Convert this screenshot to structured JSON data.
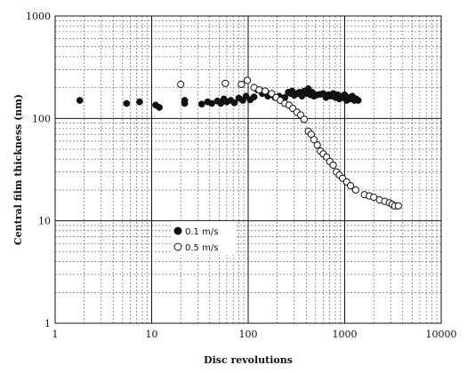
{
  "chart_data": {
    "type": "scatter",
    "xlabel": "Disc revolutions",
    "ylabel": "Central film thickness (nm)",
    "x_scale": "log",
    "y_scale": "log",
    "xlim": [
      1,
      10000
    ],
    "ylim": [
      1,
      1000
    ],
    "x_ticks": [
      "1",
      "10",
      "100",
      "1000",
      "10000"
    ],
    "y_ticks": [
      "1",
      "10",
      "100",
      "1000"
    ],
    "grid": "major solid, minor dashed",
    "legend_position": "lower-left inside",
    "series": [
      {
        "name": "0.1 m/s",
        "marker": "filled-circle",
        "color": "#111111",
        "points": [
          [
            1.8,
            150
          ],
          [
            5.5,
            140
          ],
          [
            7.5,
            145
          ],
          [
            11,
            135
          ],
          [
            12,
            128
          ],
          [
            22,
            150
          ],
          [
            22,
            140
          ],
          [
            33,
            138
          ],
          [
            38,
            145
          ],
          [
            42,
            140
          ],
          [
            48,
            148
          ],
          [
            52,
            140
          ],
          [
            56,
            155
          ],
          [
            60,
            145
          ],
          [
            66,
            150
          ],
          [
            72,
            142
          ],
          [
            80,
            158
          ],
          [
            88,
            150
          ],
          [
            95,
            165
          ],
          [
            105,
            152
          ],
          [
            115,
            162
          ],
          [
            125,
            190
          ],
          [
            140,
            175
          ],
          [
            160,
            165
          ],
          [
            175,
            170
          ],
          [
            190,
            160
          ],
          [
            210,
            165
          ],
          [
            240,
            160
          ],
          [
            260,
            180
          ],
          [
            275,
            175
          ],
          [
            285,
            185
          ],
          [
            300,
            168
          ],
          [
            320,
            175
          ],
          [
            340,
            180
          ],
          [
            360,
            165
          ],
          [
            380,
            185
          ],
          [
            400,
            175
          ],
          [
            420,
            195
          ],
          [
            440,
            170
          ],
          [
            460,
            180
          ],
          [
            480,
            165
          ],
          [
            520,
            170
          ],
          [
            560,
            172
          ],
          [
            600,
            175
          ],
          [
            640,
            160
          ],
          [
            680,
            170
          ],
          [
            720,
            165
          ],
          [
            760,
            175
          ],
          [
            800,
            160
          ],
          [
            840,
            170
          ],
          [
            880,
            155
          ],
          [
            920,
            165
          ],
          [
            960,
            160
          ],
          [
            1000,
            170
          ],
          [
            1050,
            150
          ],
          [
            1100,
            160
          ],
          [
            1150,
            155
          ],
          [
            1200,
            165
          ],
          [
            1260,
            150
          ],
          [
            1320,
            155
          ],
          [
            1380,
            150
          ]
        ]
      },
      {
        "name": "0.5 m/s",
        "marker": "open-circle",
        "color": "#111111",
        "points": [
          [
            20,
            215
          ],
          [
            58,
            220
          ],
          [
            85,
            215
          ],
          [
            98,
            235
          ],
          [
            115,
            200
          ],
          [
            130,
            190
          ],
          [
            150,
            185
          ],
          [
            175,
            175
          ],
          [
            195,
            160
          ],
          [
            215,
            150
          ],
          [
            240,
            140
          ],
          [
            265,
            135
          ],
          [
            290,
            125
          ],
          [
            320,
            115
          ],
          [
            350,
            108
          ],
          [
            380,
            98
          ],
          [
            420,
            75
          ],
          [
            450,
            70
          ],
          [
            480,
            62
          ],
          [
            520,
            55
          ],
          [
            560,
            48
          ],
          [
            600,
            45
          ],
          [
            650,
            42
          ],
          [
            700,
            38
          ],
          [
            760,
            35
          ],
          [
            820,
            30
          ],
          [
            880,
            28
          ],
          [
            950,
            26
          ],
          [
            1050,
            24
          ],
          [
            1150,
            22
          ],
          [
            1300,
            20
          ],
          [
            1600,
            18
          ],
          [
            1800,
            17.5
          ],
          [
            2000,
            17
          ],
          [
            2300,
            16
          ],
          [
            2600,
            15.5
          ],
          [
            2900,
            15
          ],
          [
            3100,
            14.5
          ],
          [
            3300,
            14
          ],
          [
            3600,
            14
          ]
        ]
      }
    ]
  }
}
